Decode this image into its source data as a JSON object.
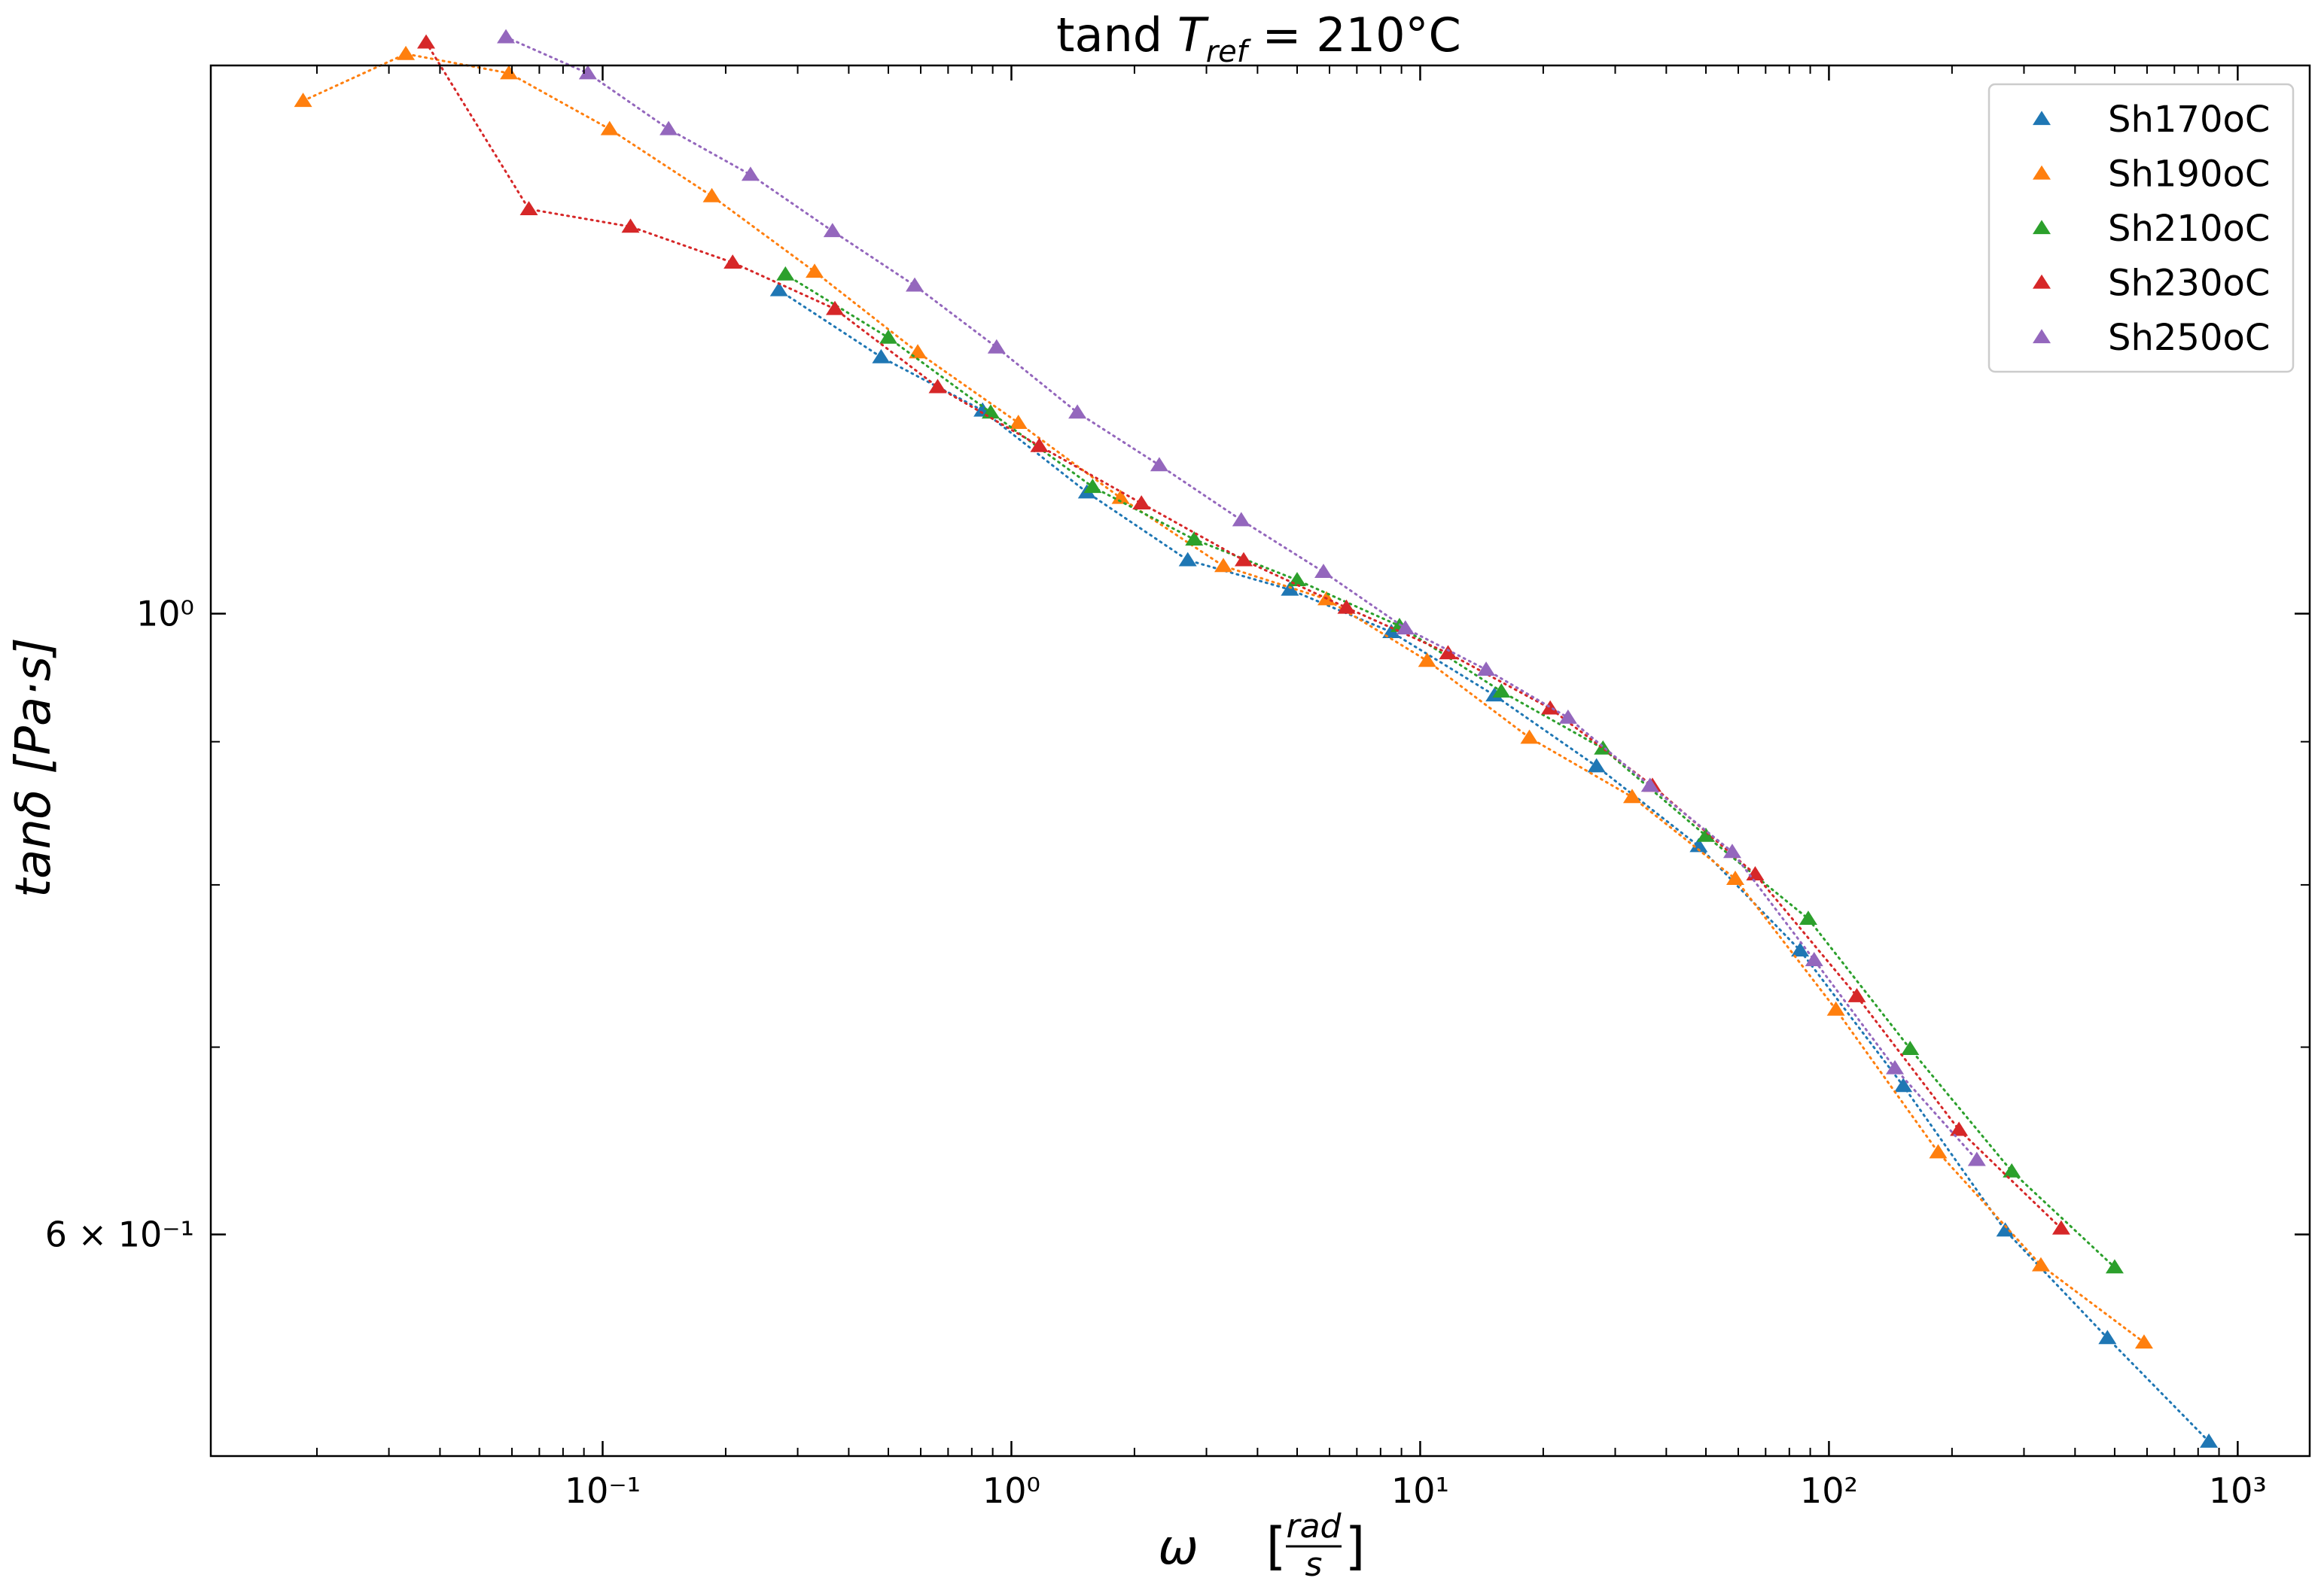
{
  "chart_data": {
    "type": "scatter",
    "title": "tand T_ref = 210°C",
    "title_parts": {
      "main": "tand ",
      "var": "T",
      "sub": "ref",
      "rest": " = 210°C"
    },
    "xlabel": "ω [rad/s]",
    "xlabel_parts": {
      "symbol": "ω",
      "unit_num": "rad",
      "unit_den": "s"
    },
    "ylabel": "tanδ [Pa·s]",
    "x_scale": "log",
    "y_scale": "log",
    "xlim": [
      0.011,
      1500
    ],
    "ylim": [
      0.5,
      1.57
    ],
    "x_ticks": [
      {
        "value": 0.1,
        "label": "10⁻¹"
      },
      {
        "value": 1,
        "label": "10⁰"
      },
      {
        "value": 10,
        "label": "10¹"
      },
      {
        "value": 100,
        "label": "10²"
      },
      {
        "value": 1000,
        "label": "10³"
      }
    ],
    "y_ticks": [
      {
        "value": 1.0,
        "label": "10⁰"
      },
      {
        "value": 0.6,
        "label": "6 × 10⁻¹"
      }
    ],
    "y_minor_ticks": [
      0.9,
      0.8,
      0.7,
      0.5
    ],
    "grid": false,
    "legend_position": "top-right",
    "marker": "triangle",
    "line_style": "dotted",
    "series": [
      {
        "name": "Sh170oC",
        "color": "#1f77b4",
        "x": [
          0.27,
          0.48,
          0.85,
          1.53,
          2.7,
          4.8,
          8.5,
          15.2,
          27,
          48,
          85,
          152,
          270,
          480,
          850
        ],
        "y": [
          1.305,
          1.235,
          1.182,
          1.105,
          1.045,
          1.02,
          0.985,
          0.935,
          0.882,
          0.826,
          0.758,
          0.678,
          0.602,
          0.551,
          0.506
        ]
      },
      {
        "name": "Sh190oC",
        "color": "#ff7f0e",
        "x": [
          0.0185,
          0.033,
          0.059,
          0.104,
          0.185,
          0.33,
          0.59,
          1.04,
          1.85,
          3.3,
          5.9,
          10.4,
          18.5,
          33,
          59,
          104,
          185,
          330,
          590
        ],
        "y": [
          1.525,
          1.585,
          1.56,
          1.49,
          1.41,
          1.325,
          1.24,
          1.17,
          1.1,
          1.04,
          1.012,
          0.962,
          0.903,
          0.86,
          0.804,
          0.722,
          0.642,
          0.585,
          0.549
        ]
      },
      {
        "name": "Sh210oC",
        "color": "#2ca02c",
        "x": [
          0.28,
          0.5,
          0.89,
          1.58,
          2.8,
          5.0,
          8.9,
          15.8,
          28,
          50,
          89,
          158,
          280,
          500
        ],
        "y": [
          1.322,
          1.255,
          1.18,
          1.11,
          1.063,
          1.028,
          0.99,
          0.938,
          0.895,
          0.833,
          0.778,
          0.699,
          0.632,
          0.584
        ]
      },
      {
        "name": "Sh230oC",
        "color": "#d62728",
        "x": [
          0.037,
          0.066,
          0.117,
          0.208,
          0.37,
          0.66,
          1.17,
          2.08,
          3.7,
          6.6,
          11.7,
          20.8,
          37,
          66,
          117,
          208,
          370
        ],
        "y": [
          1.6,
          1.395,
          1.375,
          1.335,
          1.285,
          1.205,
          1.148,
          1.095,
          1.045,
          1.005,
          0.968,
          0.925,
          0.868,
          0.807,
          0.73,
          0.654,
          0.603
        ]
      },
      {
        "name": "Sh250oC",
        "color": "#9467bd",
        "x": [
          0.058,
          0.092,
          0.145,
          0.23,
          0.365,
          0.58,
          0.92,
          1.45,
          2.3,
          3.65,
          5.8,
          9.2,
          14.5,
          23,
          36.5,
          58,
          92,
          145,
          230
        ],
        "y": [
          1.607,
          1.56,
          1.49,
          1.435,
          1.37,
          1.31,
          1.245,
          1.18,
          1.13,
          1.08,
          1.035,
          0.988,
          0.955,
          0.918,
          0.868,
          0.822,
          0.752,
          0.688,
          0.638
        ]
      }
    ]
  }
}
